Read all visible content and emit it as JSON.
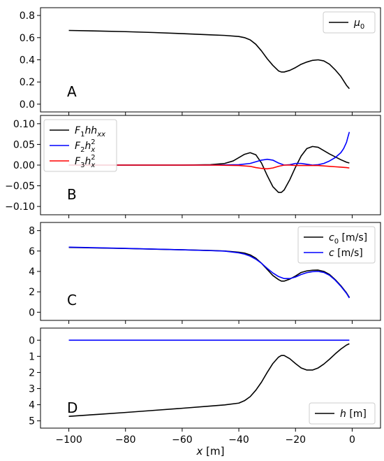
{
  "chart_data": [
    {
      "type": "line",
      "panel_label": "A",
      "xlim": [
        -110,
        10
      ],
      "ylim": [
        -0.07,
        0.87
      ],
      "yticks": [
        "0.8",
        "0.6",
        "0.4",
        "0.2",
        "0.0"
      ],
      "ytick_values": [
        0.8,
        0.6,
        0.4,
        0.2,
        0.0
      ],
      "legend_position": "upper-right",
      "series": [
        {
          "name": "μ₀",
          "color": "#000000",
          "x": [
            -100,
            -90,
            -80,
            -70,
            -60,
            -50,
            -45,
            -40,
            -38,
            -36,
            -34,
            -32,
            -30,
            -28,
            -26,
            -25,
            -24,
            -22,
            -20,
            -18,
            -16,
            -14,
            -12,
            -10,
            -8,
            -6,
            -4,
            -2,
            -1
          ],
          "y": [
            0.665,
            0.66,
            0.654,
            0.646,
            0.636,
            0.625,
            0.62,
            0.61,
            0.6,
            0.58,
            0.54,
            0.48,
            0.41,
            0.35,
            0.3,
            0.29,
            0.29,
            0.305,
            0.33,
            0.36,
            0.38,
            0.395,
            0.4,
            0.39,
            0.36,
            0.31,
            0.25,
            0.17,
            0.14
          ]
        }
      ]
    },
    {
      "type": "line",
      "panel_label": "B",
      "xlim": [
        -110,
        10
      ],
      "ylim": [
        -0.12,
        0.12
      ],
      "yticks": [
        "0.10",
        "0.05",
        "0.00",
        "−0.05",
        "−0.10"
      ],
      "ytick_values": [
        0.1,
        0.05,
        0.0,
        -0.05,
        -0.1
      ],
      "legend_position": "upper-left",
      "series": [
        {
          "name": "F₁hhₓₓ",
          "color": "#000000",
          "x": [
            -100,
            -60,
            -50,
            -45,
            -42,
            -40,
            -38,
            -36,
            -34,
            -32,
            -30,
            -28,
            -26,
            -25,
            -24,
            -22,
            -20,
            -18,
            -16,
            -14,
            -12,
            -10,
            -8,
            -6,
            -4,
            -2,
            -1
          ],
          "y": [
            0.0,
            0.0,
            0.001,
            0.004,
            0.01,
            0.018,
            0.026,
            0.03,
            0.025,
            0.005,
            -0.025,
            -0.052,
            -0.066,
            -0.066,
            -0.06,
            -0.035,
            -0.005,
            0.022,
            0.04,
            0.045,
            0.043,
            0.035,
            0.027,
            0.02,
            0.013,
            0.007,
            0.005
          ]
        },
        {
          "name": "F₂hₓ²",
          "color": "#0000ff",
          "x": [
            -100,
            -50,
            -40,
            -36,
            -34,
            -32,
            -30,
            -28,
            -26,
            -24,
            -22,
            -20,
            -18,
            -16,
            -14,
            -12,
            -10,
            -8,
            -6,
            -4,
            -3,
            -2,
            -1.5,
            -1
          ],
          "y": [
            0.0,
            0.0,
            0.001,
            0.004,
            0.008,
            0.012,
            0.014,
            0.012,
            0.005,
            0.0,
            0.001,
            0.004,
            0.004,
            0.002,
            0.0,
            0.001,
            0.004,
            0.01,
            0.018,
            0.03,
            0.04,
            0.055,
            0.068,
            0.08
          ]
        },
        {
          "name": "F₃hₓ²",
          "color": "#ff0000",
          "x": [
            -100,
            -50,
            -40,
            -36,
            -34,
            -32,
            -30,
            -28,
            -26,
            -24,
            -22,
            -20,
            -18,
            -16,
            -14,
            -12,
            -10,
            -8,
            -6,
            -4,
            -2,
            -1
          ],
          "y": [
            0.0,
            0.0,
            -0.001,
            -0.003,
            -0.006,
            -0.008,
            -0.009,
            -0.007,
            -0.003,
            0.0,
            0.0,
            -0.001,
            -0.001,
            -0.001,
            -0.001,
            -0.001,
            -0.002,
            -0.003,
            -0.004,
            -0.005,
            -0.006,
            -0.007
          ]
        }
      ]
    },
    {
      "type": "line",
      "panel_label": "C",
      "xlim": [
        -110,
        10
      ],
      "ylim": [
        -0.8,
        8.8
      ],
      "yticks": [
        "8",
        "6",
        "4",
        "2",
        "0"
      ],
      "ytick_values": [
        8,
        6,
        4,
        2,
        0
      ],
      "legend_position": "upper-right",
      "series": [
        {
          "name": "c₀ [m/s]",
          "color": "#000000",
          "x": [
            -100,
            -90,
            -80,
            -70,
            -60,
            -50,
            -45,
            -40,
            -38,
            -36,
            -34,
            -32,
            -30,
            -28,
            -26,
            -25,
            -24,
            -22,
            -20,
            -18,
            -16,
            -14,
            -12,
            -10,
            -8,
            -6,
            -4,
            -2,
            -1
          ],
          "y": [
            6.35,
            6.3,
            6.25,
            6.18,
            6.12,
            6.05,
            6.0,
            5.88,
            5.8,
            5.62,
            5.3,
            4.8,
            4.2,
            3.6,
            3.2,
            3.05,
            3.05,
            3.25,
            3.55,
            3.9,
            4.05,
            4.12,
            4.13,
            4.0,
            3.7,
            3.2,
            2.6,
            1.9,
            1.45
          ]
        },
        {
          "name": "c [m/s]",
          "color": "#0000ff",
          "x": [
            -100,
            -90,
            -80,
            -70,
            -60,
            -50,
            -45,
            -40,
            -38,
            -36,
            -34,
            -32,
            -30,
            -28,
            -26,
            -24,
            -22,
            -20,
            -18,
            -16,
            -14,
            -12,
            -10,
            -8,
            -6,
            -4,
            -2,
            -1
          ],
          "y": [
            6.38,
            6.32,
            6.26,
            6.19,
            6.12,
            6.04,
            5.99,
            5.82,
            5.7,
            5.5,
            5.2,
            4.8,
            4.3,
            3.85,
            3.5,
            3.3,
            3.3,
            3.45,
            3.7,
            3.88,
            3.98,
            4.0,
            3.9,
            3.62,
            3.15,
            2.55,
            1.85,
            1.4
          ]
        }
      ]
    },
    {
      "type": "line",
      "panel_label": "D",
      "xlim": [
        -110,
        10
      ],
      "ylim": [
        5.45,
        -0.75
      ],
      "yticks": [
        "0",
        "1",
        "2",
        "3",
        "4",
        "5"
      ],
      "ytick_values": [
        0,
        1,
        2,
        3,
        4,
        5
      ],
      "xticks": [
        "−100",
        "−80",
        "−60",
        "−40",
        "−20",
        "0"
      ],
      "xtick_values": [
        -100,
        -80,
        -60,
        -40,
        -20,
        0
      ],
      "xlabel": "x [m]",
      "legend_position": "lower-right",
      "series": [
        {
          "name": "h [m]",
          "color": "#000000",
          "x": [
            -100,
            -90,
            -80,
            -70,
            -60,
            -50,
            -45,
            -40,
            -38,
            -36,
            -34,
            -32,
            -30,
            -28,
            -26,
            -25,
            -24,
            -22,
            -20,
            -18,
            -16,
            -14,
            -12,
            -10,
            -8,
            -6,
            -4,
            -2,
            -1
          ],
          "y": [
            4.72,
            4.6,
            4.48,
            4.35,
            4.22,
            4.08,
            4.01,
            3.9,
            3.75,
            3.5,
            3.1,
            2.6,
            2.0,
            1.45,
            1.05,
            0.95,
            0.95,
            1.15,
            1.45,
            1.72,
            1.85,
            1.85,
            1.72,
            1.48,
            1.18,
            0.85,
            0.55,
            0.3,
            0.22
          ]
        },
        {
          "color": "#0000ff",
          "x": [
            -100,
            -1
          ],
          "y": [
            0.0,
            0.0
          ]
        }
      ]
    }
  ]
}
